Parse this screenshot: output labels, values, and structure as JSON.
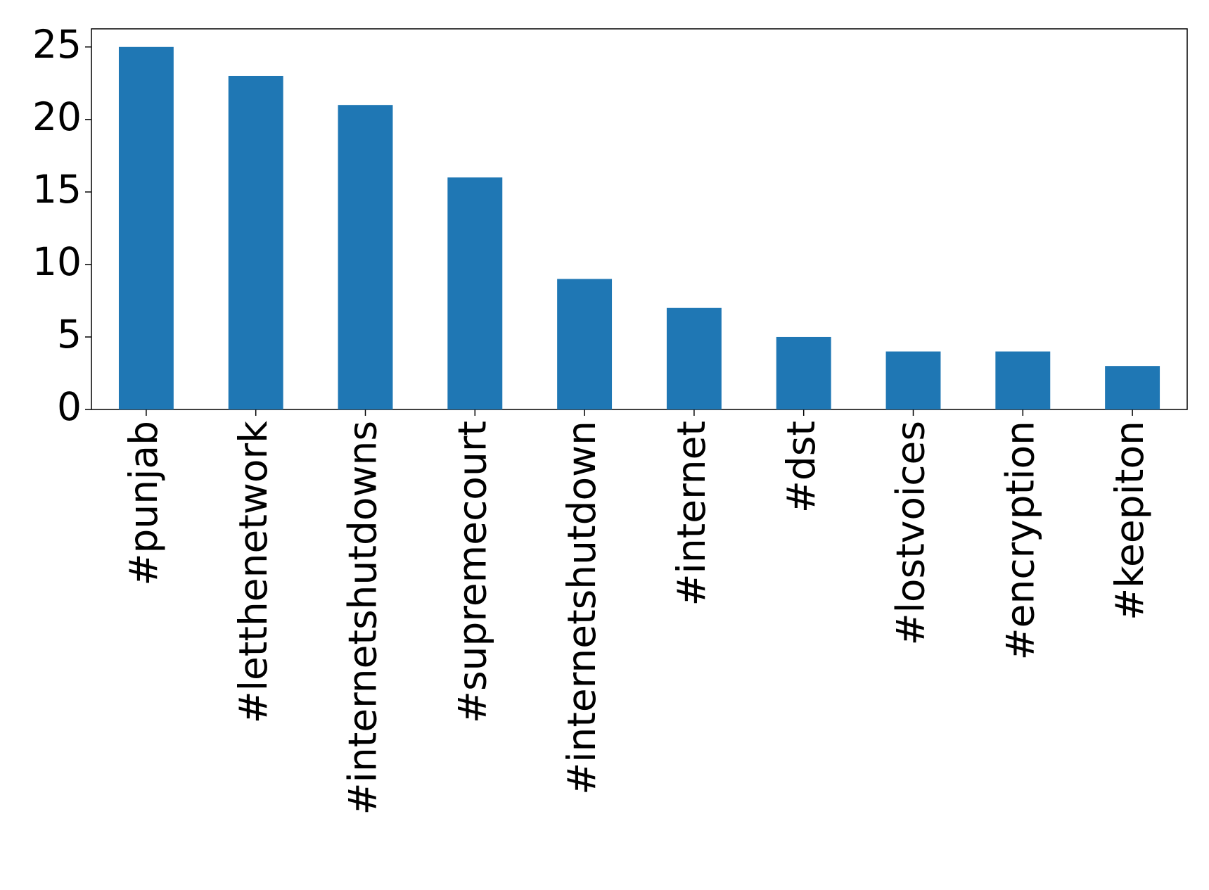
{
  "chart_data": {
    "type": "bar",
    "categories": [
      "#punjab",
      "#letthenetwork",
      "#internetshutdowns",
      "#supremecourt",
      "#internetshutdown",
      "#internet",
      "#dst",
      "#lostvoices",
      "#encryption",
      "#keepiton"
    ],
    "values": [
      25,
      23,
      21,
      16,
      9,
      7,
      5,
      4,
      4,
      3
    ],
    "color": "#1f77b4",
    "ylim": [
      0,
      26.25
    ],
    "yticks": [
      0,
      5,
      10,
      15,
      20,
      25
    ],
    "grid": false
  }
}
